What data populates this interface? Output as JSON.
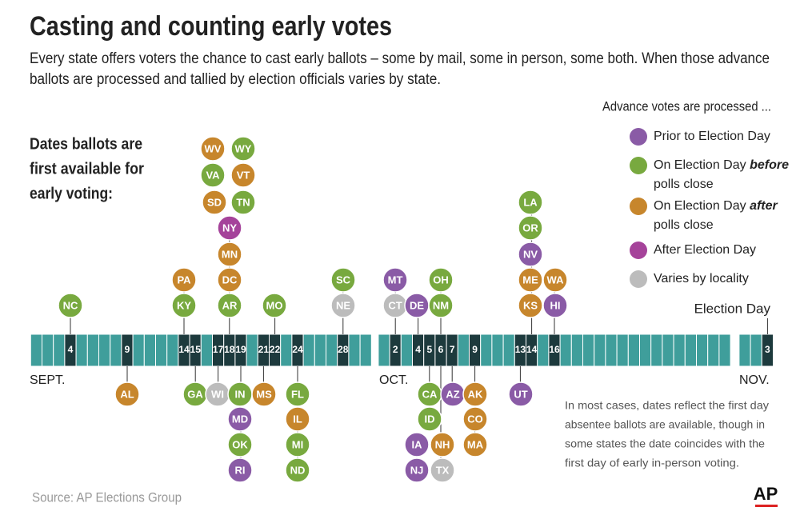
{
  "header": {
    "title": "Casting and counting early votes",
    "subtitle_lines": [
      "Every state offers voters the chance to cast early ballots – some by mail, some in person, some both. When those advance",
      "ballots are processed and tallied by election officials varies by state."
    ]
  },
  "side_label": {
    "lines": [
      "Dates ballots are",
      "first available for",
      "early voting:"
    ]
  },
  "legend": {
    "title": "Advance votes are processed ...",
    "items": [
      {
        "label": "Prior to Election Day",
        "color": "#8a5ba6"
      },
      {
        "label": "On Election Day",
        "emphasis": "before",
        "label2": "polls close",
        "color": "#78a93f"
      },
      {
        "label": "On Election Day",
        "emphasis": "after",
        "label2": "polls close",
        "color": "#c7862c"
      },
      {
        "label": "After Election Day",
        "color": "#a5439a"
      },
      {
        "label": "Varies by locality",
        "color": "#bcbcbc"
      }
    ]
  },
  "timeline": {
    "election_day_label": "Election Day",
    "months": [
      {
        "label": "SEPT.",
        "dates": [
          {
            "day": 4,
            "states": [
              {
                "code": "NC",
                "color": "#78a93f"
              }
            ]
          },
          {
            "day": 9,
            "states": [
              {
                "code": "AL",
                "color": "#c7862c"
              }
            ]
          },
          {
            "day": 14,
            "states": [
              {
                "code": "KY",
                "color": "#78a93f"
              },
              {
                "code": "PA",
                "color": "#c7862c"
              }
            ]
          },
          {
            "day": 15,
            "states": [
              {
                "code": "GA",
                "color": "#78a93f"
              }
            ]
          },
          {
            "day": 17,
            "states": [
              {
                "code": "WI",
                "color": "#bcbcbc"
              }
            ]
          },
          {
            "day": 18,
            "states": [
              {
                "code": "AR",
                "color": "#78a93f"
              },
              {
                "code": "DC",
                "color": "#c7862c"
              },
              {
                "code": "MN",
                "color": "#c7862c"
              },
              {
                "code": "NY",
                "color": "#a5439a"
              },
              {
                "code": "SD",
                "color": "#c7862c"
              },
              {
                "code": "TN",
                "color": "#78a93f"
              },
              {
                "code": "VA",
                "color": "#78a93f"
              },
              {
                "code": "VT",
                "color": "#c7862c"
              },
              {
                "code": "WV",
                "color": "#c7862c"
              },
              {
                "code": "WY",
                "color": "#78a93f"
              }
            ]
          },
          {
            "day": 19,
            "states": [
              {
                "code": "IN",
                "color": "#78a93f"
              },
              {
                "code": "MD",
                "color": "#8a5ba6"
              },
              {
                "code": "OK",
                "color": "#78a93f"
              },
              {
                "code": "RI",
                "color": "#8a5ba6"
              }
            ]
          },
          {
            "day": 21,
            "states": [
              {
                "code": "MS",
                "color": "#c7862c"
              }
            ]
          },
          {
            "day": 22,
            "states": [
              {
                "code": "MO",
                "color": "#78a93f"
              }
            ]
          },
          {
            "day": 24,
            "states": [
              {
                "code": "FL",
                "color": "#78a93f"
              },
              {
                "code": "IL",
                "color": "#c7862c"
              },
              {
                "code": "MI",
                "color": "#78a93f"
              },
              {
                "code": "ND",
                "color": "#78a93f"
              }
            ]
          },
          {
            "day": 28,
            "states": [
              {
                "code": "NE",
                "color": "#bcbcbc"
              },
              {
                "code": "SC",
                "color": "#78a93f"
              }
            ]
          }
        ]
      },
      {
        "label": "OCT.",
        "dates": [
          {
            "day": 2,
            "states": [
              {
                "code": "CT",
                "color": "#bcbcbc"
              },
              {
                "code": "MT",
                "color": "#8a5ba6"
              }
            ]
          },
          {
            "day": 4,
            "states": [
              {
                "code": "DE",
                "color": "#8a5ba6"
              }
            ]
          },
          {
            "day": 5,
            "states": [
              {
                "code": "CA",
                "color": "#78a93f"
              },
              {
                "code": "ID",
                "color": "#78a93f"
              },
              {
                "code": "IA",
                "color": "#8a5ba6"
              },
              {
                "code": "NJ",
                "color": "#8a5ba6"
              }
            ]
          },
          {
            "day": 6,
            "states": [
              {
                "code": "NM",
                "color": "#78a93f"
              },
              {
                "code": "OH",
                "color": "#78a93f"
              },
              {
                "code": "NH",
                "color": "#c7862c"
              },
              {
                "code": "TX",
                "color": "#bcbcbc"
              }
            ]
          },
          {
            "day": 7,
            "states": [
              {
                "code": "AZ",
                "color": "#8a5ba6"
              }
            ]
          },
          {
            "day": 9,
            "states": [
              {
                "code": "AK",
                "color": "#c7862c"
              },
              {
                "code": "CO",
                "color": "#c7862c"
              },
              {
                "code": "MA",
                "color": "#c7862c"
              }
            ]
          },
          {
            "day": 13,
            "states": [
              {
                "code": "UT",
                "color": "#8a5ba6"
              }
            ]
          },
          {
            "day": 14,
            "states": [
              {
                "code": "KS",
                "color": "#c7862c"
              },
              {
                "code": "ME",
                "color": "#c7862c"
              },
              {
                "code": "NV",
                "color": "#8a5ba6"
              },
              {
                "code": "OR",
                "color": "#78a93f"
              },
              {
                "code": "LA",
                "color": "#78a93f"
              }
            ]
          },
          {
            "day": 16,
            "states": [
              {
                "code": "HI",
                "color": "#8a5ba6"
              },
              {
                "code": "WA",
                "color": "#c7862c"
              }
            ]
          }
        ]
      },
      {
        "label": "NOV.",
        "dates": [
          {
            "day": 3,
            "states": []
          }
        ]
      }
    ]
  },
  "note": {
    "lines": [
      "In most cases, dates reflect the first day",
      "absentee ballots are available, though in",
      "some states the date coincides with the",
      "first day of early in-person voting."
    ]
  },
  "source": "Source: AP Elections Group",
  "logo": "AP"
}
